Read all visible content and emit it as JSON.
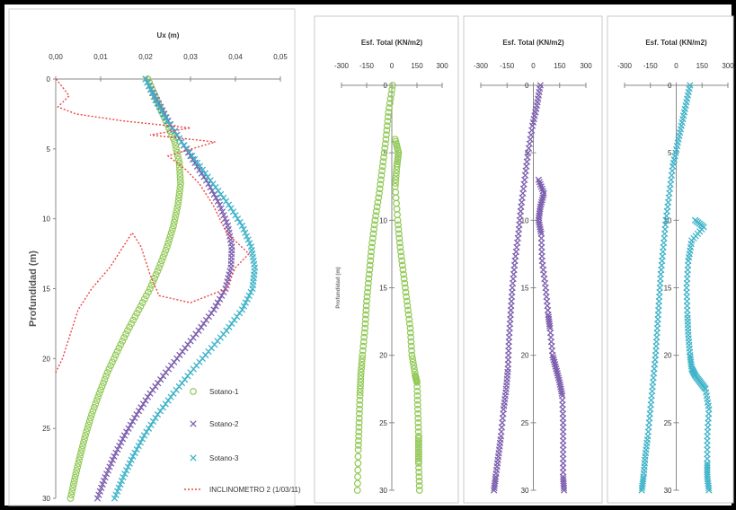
{
  "chart_data": [
    {
      "type": "scatter",
      "title": "",
      "xlabel": "Ux (m)",
      "ylabel": "Profundidad (m)",
      "xlim": [
        0,
        0.05
      ],
      "ylim": [
        0,
        30
      ],
      "y_inverted": true,
      "x_ticks": [
        "0,00",
        "0,01",
        "0,02",
        "0,03",
        "0,04",
        "0,05"
      ],
      "y_ticks": [
        "0",
        "5",
        "10",
        "15",
        "20",
        "25",
        "30"
      ],
      "legend": "right",
      "series": [
        {
          "name": "Sotano-1",
          "marker": "o",
          "color": "#92c957",
          "x": [
            0.0205,
            0.0225,
            0.0245,
            0.0265,
            0.0275,
            0.0278,
            0.0272,
            0.0262,
            0.0248,
            0.023,
            0.021,
            0.0185,
            0.016,
            0.0137,
            0.0115,
            0.0097,
            0.008,
            0.0066,
            0.0054,
            0.0043,
            0.0033
          ],
          "y": [
            0,
            1.5,
            3,
            4.5,
            6,
            7.5,
            9,
            10.5,
            12,
            13.5,
            15,
            16.5,
            18,
            19.5,
            21,
            22.5,
            24,
            25.5,
            27,
            28.5,
            30
          ]
        },
        {
          "name": "Sotano-2",
          "marker": "x",
          "color": "#7d5eaf",
          "x": [
            0.02,
            0.0225,
            0.025,
            0.028,
            0.031,
            0.034,
            0.0365,
            0.0383,
            0.0392,
            0.039,
            0.0378,
            0.0352,
            0.0318,
            0.0282,
            0.0245,
            0.021,
            0.018,
            0.0153,
            0.013,
            0.011,
            0.0093
          ],
          "y": [
            0,
            1.5,
            3,
            4.5,
            6,
            7.5,
            9,
            10.5,
            12,
            13.5,
            15,
            16.5,
            18,
            19.5,
            21,
            22.5,
            24,
            25.5,
            27,
            28.5,
            30
          ]
        },
        {
          "name": "Sotano-3",
          "marker": "x",
          "color": "#3fb3c9",
          "x": [
            0.02,
            0.0222,
            0.0248,
            0.028,
            0.0315,
            0.035,
            0.0385,
            0.0415,
            0.0435,
            0.0443,
            0.0438,
            0.0415,
            0.038,
            0.034,
            0.03,
            0.0262,
            0.0227,
            0.0197,
            0.0172,
            0.015,
            0.0131
          ],
          "y": [
            0,
            1.5,
            3,
            4.5,
            6,
            7.5,
            9,
            10.5,
            12,
            13.5,
            15,
            16.5,
            18,
            19.5,
            21,
            22.5,
            24,
            25.5,
            27,
            28.5,
            30
          ]
        },
        {
          "name": "INCLINOMETRO 2 (1/03/11)",
          "marker": "dash",
          "color": "#ee4444",
          "x": [
            0.0001,
            0.003,
            0.0005,
            0.0045,
            0.015,
            0.03,
            0.021,
            0.0355,
            0.025,
            0.029,
            0.032,
            0.035,
            0.038,
            0.043,
            0.04,
            0.038,
            0.03,
            0.023,
            0.021,
            0.019,
            0.017,
            0.014,
            0.012,
            0.008,
            0.005,
            0.004,
            0.003,
            0.0015,
            0.0
          ],
          "y": [
            0,
            1.2,
            2.0,
            2.5,
            3.0,
            3.5,
            4.0,
            4.5,
            5.5,
            6.5,
            7.5,
            9.0,
            11.0,
            12.5,
            13.5,
            15.0,
            16.0,
            15.5,
            14.0,
            12.0,
            11.0,
            12.5,
            13.5,
            15.0,
            16.5,
            17.5,
            18.5,
            20.0,
            21.0
          ]
        }
      ]
    },
    {
      "type": "scatter",
      "title": "Esf. Total (KN/m2)",
      "xlabel": "Esf. Total (KN/m2)",
      "ylabel": "Profundidad (m)",
      "xlim": [
        -300,
        300
      ],
      "ylim": [
        0,
        30
      ],
      "y_inverted": true,
      "x_ticks": [
        "-300",
        "-150",
        "0",
        "150",
        "300"
      ],
      "y_ticks": [
        "0",
        "5",
        "10",
        "15",
        "20",
        "25",
        "30"
      ],
      "series": [
        {
          "name": "",
          "marker": "o",
          "color": "#92c957",
          "x": [
            5,
            -20,
            -35,
            -55,
            -75,
            -100,
            -120,
            -135,
            -150,
            -160,
            -175,
            -185,
            -190,
            -195,
            -200,
            -205
          ],
          "y": [
            0,
            2,
            4,
            6,
            8,
            10,
            12,
            14,
            16,
            18,
            20,
            21.5,
            23,
            25,
            27,
            30
          ]
        },
        {
          "name": "",
          "marker": "o",
          "color": "#92c957",
          "x": [
            20,
            40,
            30,
            20,
            35,
            50,
            70,
            90,
            110,
            120,
            140,
            150,
            155,
            160,
            160,
            160,
            165
          ],
          "y": [
            4,
            5,
            6,
            7.5,
            10,
            12,
            14,
            16,
            18,
            20,
            21.5,
            22,
            24,
            26,
            27,
            28,
            30
          ]
        }
      ]
    },
    {
      "type": "scatter",
      "title": "Esf. Total (KN/m2)",
      "xlabel": "Esf. Total (KN/m2)",
      "ylabel": "",
      "xlim": [
        -300,
        300
      ],
      "ylim": [
        0,
        30
      ],
      "y_inverted": true,
      "x_ticks": [
        "-300",
        "-150",
        "0",
        "150",
        "300"
      ],
      "y_ticks": [
        "0",
        "5",
        "10",
        "15",
        "20",
        "25",
        "30"
      ],
      "series": [
        {
          "name": "",
          "marker": "x",
          "color": "#7d5eaf",
          "x": [
            40,
            20,
            -5,
            -30,
            -50,
            -70,
            -85,
            -105,
            -120,
            -130,
            -140,
            -145,
            -155,
            -170,
            -185,
            -200,
            -215,
            -225
          ],
          "y": [
            0,
            1.5,
            3,
            5,
            7,
            9,
            11,
            13,
            15,
            17,
            19,
            21,
            22.5,
            24,
            26,
            27.5,
            29,
            30
          ]
        },
        {
          "name": "",
          "marker": "x",
          "color": "#7d5eaf",
          "x": [
            30,
            60,
            40,
            30,
            45,
            50,
            70,
            85,
            95,
            110,
            130,
            150,
            165,
            170,
            170,
            170,
            175
          ],
          "y": [
            7,
            8,
            9,
            10,
            11,
            13,
            15,
            17,
            18,
            20,
            21,
            22,
            23,
            25,
            27,
            29,
            30
          ]
        }
      ]
    },
    {
      "type": "scatter",
      "title": "Esf. Total (KN/m2)",
      "xlabel": "Esf. Total (KN/m2)",
      "ylabel": "",
      "xlim": [
        -300,
        300
      ],
      "ylim": [
        0,
        30
      ],
      "y_inverted": true,
      "x_ticks": [
        "-300",
        "-150",
        "0",
        "150",
        "300"
      ],
      "y_ticks": [
        "0",
        "5",
        "10",
        "15",
        "20",
        "25",
        "30"
      ],
      "series": [
        {
          "name": "",
          "marker": "x",
          "color": "#3fb3c9",
          "x": [
            80,
            55,
            30,
            5,
            -20,
            -40,
            -60,
            -75,
            -90,
            -100,
            -110,
            -120,
            -135,
            -150,
            -165,
            -180,
            -190,
            -200
          ],
          "y": [
            0,
            1.5,
            3,
            4.5,
            6,
            8,
            10,
            12,
            14,
            16,
            18,
            20,
            22,
            24,
            26,
            27.5,
            29,
            30
          ]
        },
        {
          "name": "",
          "marker": "x",
          "color": "#3fb3c9",
          "x": [
            110,
            160,
            90,
            70,
            60,
            65,
            70,
            80,
            90,
            110,
            140,
            170,
            190,
            180,
            180,
            180,
            190
          ],
          "y": [
            10,
            10.5,
            11.5,
            13,
            15,
            17,
            18.5,
            20,
            21,
            21.5,
            22,
            22.5,
            24,
            26,
            28,
            29,
            30
          ]
        }
      ]
    }
  ]
}
